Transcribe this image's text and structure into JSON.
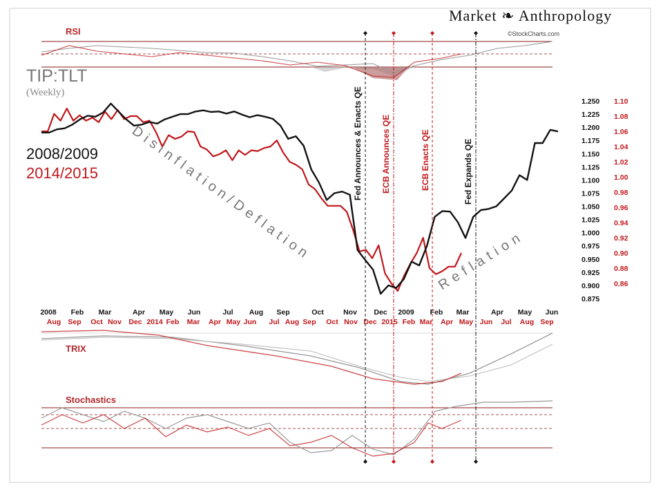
{
  "brand": {
    "name": "Market ❧ Anthropology",
    "credit": "©StockCharts.com"
  },
  "labels": {
    "ticker": "TIP:TLT",
    "period": "(Weekly)",
    "year1": "2008/2009",
    "year2": "2014/2015"
  },
  "colors": {
    "series1": "#111111",
    "series2": "#c0161a",
    "grid": "#8b1a1a",
    "shade_gray": "#b5b5b5",
    "shade_red": "#b06a6a"
  },
  "annotations": {
    "disinflation": "Disinflation/Deflation",
    "reflation": "Reflation",
    "events": [
      {
        "label": "Fed Announces & Enacts QE",
        "color": "#111111"
      },
      {
        "label": "ECB Announces QE",
        "color": "#c0161a"
      },
      {
        "label": "ECB Enacts QE",
        "color": "#c0161a"
      },
      {
        "label": "Fed Expands QE",
        "color": "#111111"
      }
    ]
  },
  "panels": {
    "rsi": "RSI",
    "trix": "TRIX",
    "stochastics": "Stochastics"
  },
  "chart_data": {
    "type": "line",
    "title": "TIP:TLT (Weekly)",
    "series": [
      {
        "name": "2008/2009",
        "axis": "left",
        "values": [
          1.19,
          1.19,
          1.196,
          1.198,
          1.205,
          1.215,
          1.222,
          1.22,
          1.228,
          1.245,
          1.23,
          1.215,
          1.203,
          1.205,
          1.21,
          1.207,
          1.215,
          1.22,
          1.225,
          1.225,
          1.23,
          1.232,
          1.229,
          1.23,
          1.226,
          1.23,
          1.224,
          1.219,
          1.223,
          1.22,
          1.216,
          1.203,
          1.178,
          1.183,
          1.165,
          1.12,
          1.095,
          1.062,
          1.075,
          1.078,
          1.072,
          0.967,
          0.948,
          0.93,
          0.884,
          0.9,
          0.895,
          0.912,
          0.945,
          0.938,
          0.975,
          1.03,
          1.041,
          1.04,
          1.02,
          0.99,
          1.03,
          1.043,
          1.045,
          1.05,
          1.065,
          1.08,
          1.109,
          1.1,
          1.17,
          1.17,
          1.195,
          1.192
        ]
      },
      {
        "name": "2014/2015",
        "axis": "right",
        "values": [
          1.06,
          1.06,
          1.083,
          1.074,
          1.09,
          1.074,
          1.081,
          1.074,
          1.078,
          1.072,
          1.086,
          1.076,
          1.088,
          1.076,
          1.08,
          1.08,
          1.072,
          1.074,
          1.059,
          1.04,
          1.055,
          1.05,
          1.053,
          1.06,
          1.059,
          1.04,
          1.036,
          1.027,
          1.03,
          1.035,
          1.022,
          1.035,
          1.029,
          1.035,
          1.034,
          1.038,
          1.04,
          1.048,
          1.032,
          1.02,
          1.016,
          1.01,
          0.99,
          0.984,
          0.972,
          0.962,
          0.962,
          0.962,
          0.954,
          0.93,
          0.902,
          0.904,
          0.893,
          0.91,
          0.873,
          0.86,
          0.85,
          0.87,
          0.886,
          0.9,
          0.92,
          0.88,
          0.872,
          0.876,
          0.882,
          0.882,
          0.9
        ]
      }
    ],
    "left_axis": {
      "ticks": [
        "1.250",
        "1.225",
        "1.200",
        "1.175",
        "1.150",
        "1.125",
        "1.100",
        "1.075",
        "1.050",
        "1.025",
        "1.000",
        "0.975",
        "0.950",
        "0.925",
        "0.900",
        "0.875"
      ],
      "ylim": [
        0.87,
        1.255
      ]
    },
    "right_axis": {
      "ticks": [
        "1.10",
        "1.08",
        "1.06",
        "1.04",
        "1.02",
        "1.00",
        "0.98",
        "0.96",
        "0.94",
        "0.92",
        "0.90",
        "0.88",
        "0.86"
      ],
      "ylim": [
        0.832,
        1.108
      ]
    },
    "x_labels_2008": [
      "2008",
      "Feb",
      "Mar",
      "Apr",
      "May",
      "Jun",
      "Jul",
      "Aug",
      "Sep",
      "Oct",
      "Nov",
      "Dec",
      "2009",
      "Feb",
      "Mar",
      "Apr",
      "May",
      "Jun"
    ],
    "x_labels_2014": [
      "Aug",
      "Sep",
      "Oct",
      "Nov",
      "Dec",
      "2014",
      "Feb",
      "Mar",
      "Apr",
      "May",
      "Jun",
      "Jul",
      "Aug",
      "Sep",
      "Oct",
      "Nov",
      "Dec",
      "2015",
      "Feb",
      "Mar",
      "Apr",
      "May",
      "Jun",
      "Jul",
      "Aug",
      "Sep"
    ]
  }
}
